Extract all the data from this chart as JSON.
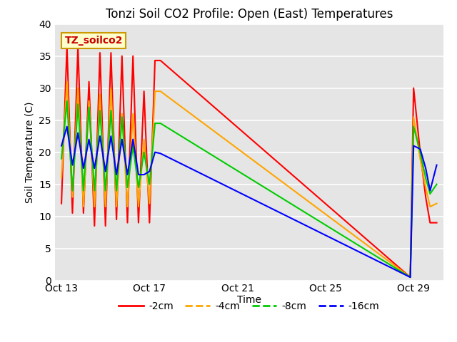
{
  "title": "Tonzi Soil CO2 Profile: Open (East) Temperatures",
  "ylabel": "Soil Temperature (C)",
  "xlabel": "Time",
  "ylim": [
    0,
    40
  ],
  "legend_label": "TZ_soilco2",
  "legend_entries": [
    "-2cm",
    "-4cm",
    "-8cm",
    "-16cm"
  ],
  "line_colors": [
    "#ff0000",
    "#ffa500",
    "#00cc00",
    "#0000ff"
  ],
  "background_color": "#e5e5e5",
  "series": {
    "2cm": {
      "x": [
        13.0,
        13.25,
        13.5,
        13.75,
        14.0,
        14.25,
        14.5,
        14.75,
        15.0,
        15.25,
        15.5,
        15.75,
        16.0,
        16.25,
        16.5,
        16.75,
        17.0,
        17.25,
        17.5,
        28.85,
        29.0,
        29.3,
        29.55,
        29.75,
        30.05
      ],
      "y": [
        12.0,
        36.5,
        10.5,
        36.5,
        10.5,
        31.0,
        8.5,
        35.5,
        8.5,
        35.5,
        9.5,
        35.0,
        9.0,
        35.0,
        9.0,
        29.5,
        9.0,
        34.3,
        34.3,
        0.5,
        30.0,
        20.0,
        13.0,
        9.0,
        9.0
      ]
    },
    "4cm": {
      "x": [
        13.0,
        13.25,
        13.5,
        13.75,
        14.0,
        14.25,
        14.5,
        14.75,
        15.0,
        15.25,
        15.5,
        15.75,
        16.0,
        16.25,
        16.5,
        16.75,
        17.0,
        17.25,
        17.5,
        28.85,
        29.0,
        29.3,
        29.55,
        29.75,
        30.05
      ],
      "y": [
        16.0,
        31.0,
        13.0,
        30.0,
        11.5,
        28.0,
        11.5,
        29.0,
        11.5,
        30.0,
        11.5,
        26.0,
        11.5,
        26.0,
        11.5,
        22.0,
        12.0,
        29.5,
        29.5,
        0.5,
        25.5,
        19.0,
        14.5,
        11.5,
        12.0
      ]
    },
    "8cm": {
      "x": [
        13.0,
        13.25,
        13.5,
        13.75,
        14.0,
        14.25,
        14.5,
        14.75,
        15.0,
        15.25,
        15.5,
        15.75,
        16.0,
        16.25,
        16.5,
        16.75,
        17.0,
        17.25,
        17.5,
        28.85,
        29.0,
        29.3,
        29.55,
        29.75,
        30.05
      ],
      "y": [
        19.0,
        28.0,
        14.0,
        27.5,
        14.0,
        27.0,
        14.0,
        26.5,
        14.0,
        26.5,
        14.0,
        25.5,
        14.5,
        21.0,
        14.5,
        20.0,
        15.0,
        24.5,
        24.5,
        0.5,
        24.0,
        20.0,
        16.0,
        13.5,
        15.0
      ]
    },
    "16cm": {
      "x": [
        13.0,
        13.25,
        13.5,
        13.75,
        14.0,
        14.25,
        14.5,
        14.75,
        15.0,
        15.25,
        15.5,
        15.75,
        16.0,
        16.25,
        16.5,
        16.75,
        17.0,
        17.25,
        17.5,
        28.85,
        29.0,
        29.3,
        29.55,
        29.75,
        30.05
      ],
      "y": [
        21.0,
        24.0,
        18.0,
        23.0,
        17.5,
        22.0,
        17.5,
        22.5,
        17.0,
        22.5,
        16.5,
        22.0,
        16.5,
        22.0,
        16.5,
        16.5,
        17.0,
        20.0,
        19.8,
        0.5,
        21.0,
        20.5,
        17.5,
        14.0,
        18.0
      ]
    }
  },
  "xtick_labels": [
    "Oct 13",
    "Oct 17",
    "Oct 21",
    "Oct 25",
    "Oct 29"
  ],
  "xtick_positions": [
    13,
    17,
    21,
    25,
    29
  ],
  "title_fontsize": 12,
  "axis_fontsize": 10,
  "tick_fontsize": 10,
  "legend_fontsize": 10
}
